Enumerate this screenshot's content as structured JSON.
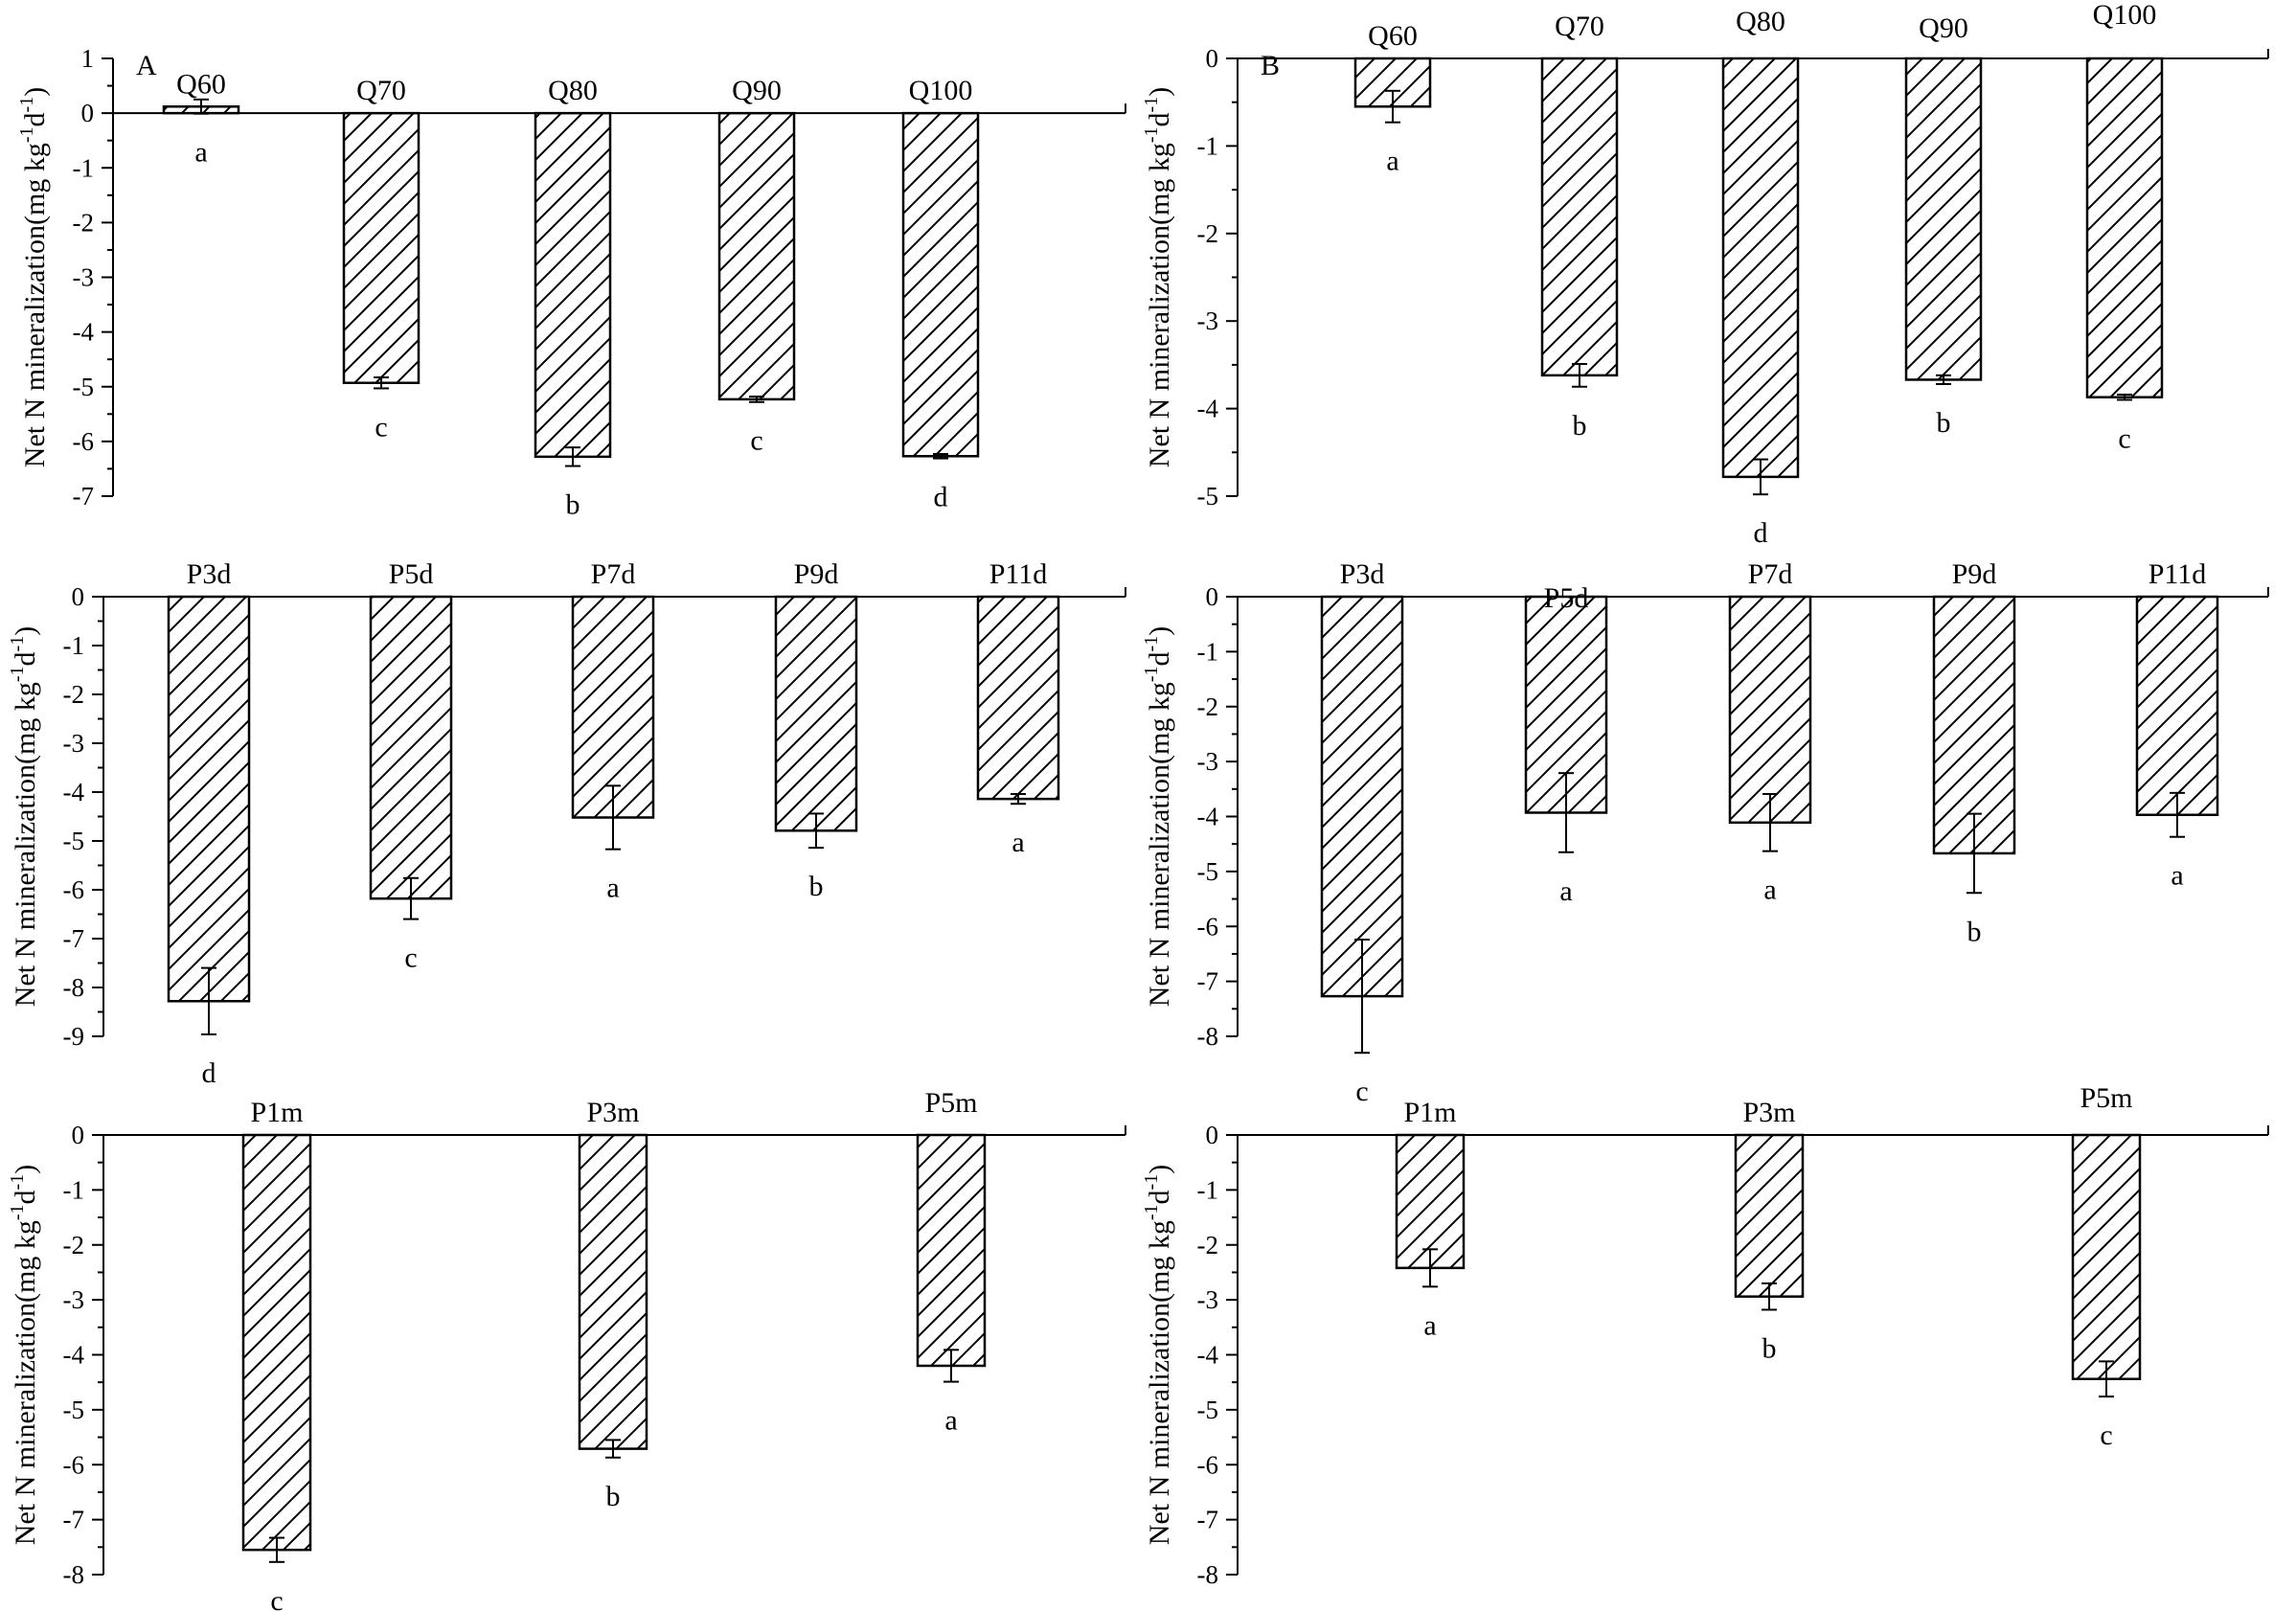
{
  "chart_data": [
    {
      "type": "bar",
      "panel_label": "A",
      "categories": [
        "Q60",
        "Q70",
        "Q80",
        "Q90",
        "Q100"
      ],
      "values": [
        0.12,
        -4.93,
        -6.28,
        -5.23,
        -6.27
      ],
      "errors": [
        0.13,
        0.1,
        0.17,
        0.05,
        0.04
      ],
      "letters": [
        "a",
        "c",
        "b",
        "c",
        "d"
      ],
      "ylabel": "Net N mineralization(mg kg-1d-1)",
      "ylim": [
        -7,
        1
      ],
      "yticks": [
        1,
        0,
        -1,
        -2,
        -3,
        -4,
        -5,
        -6,
        -7
      ],
      "grid": false
    },
    {
      "type": "bar",
      "panel_label": "B",
      "categories": [
        "Q60",
        "Q70",
        "Q80",
        "Q90",
        "Q100"
      ],
      "values": [
        -0.55,
        -3.62,
        -4.78,
        -3.67,
        -3.87
      ],
      "errors": [
        0.18,
        0.13,
        0.2,
        0.05,
        0.03
      ],
      "letters": [
        "a",
        "b",
        "d",
        "b",
        "c"
      ],
      "ylabel": "Net N mineralization(mg kg-1d-1)",
      "ylim": [
        -5,
        0
      ],
      "yticks": [
        0,
        -1,
        -2,
        -3,
        -4,
        -5
      ],
      "grid": false
    },
    {
      "type": "bar",
      "categories": [
        "P3d",
        "P5d",
        "P7d",
        "P9d",
        "P11d"
      ],
      "values": [
        -8.28,
        -6.18,
        -4.52,
        -4.79,
        -4.14
      ],
      "errors": [
        0.68,
        0.42,
        0.65,
        0.35,
        0.1
      ],
      "letters": [
        "d",
        "c",
        "a",
        "b",
        "a"
      ],
      "ylabel": "Net N mineralization(mg kg-1d-1)",
      "ylim": [
        -9,
        0
      ],
      "yticks": [
        0,
        -1,
        -2,
        -3,
        -4,
        -5,
        -6,
        -7,
        -8,
        -9
      ],
      "grid": false
    },
    {
      "type": "bar",
      "categories": [
        "P3d",
        "P5d",
        "P7d",
        "P9d",
        "P11d"
      ],
      "values": [
        -7.27,
        -3.93,
        -4.11,
        -4.67,
        -3.97
      ],
      "errors": [
        1.03,
        0.72,
        0.52,
        0.72,
        0.4
      ],
      "letters": [
        "c",
        "a",
        "a",
        "b",
        "a"
      ],
      "ylabel": "Net N mineralization(mg kg-1d-1)",
      "ylim": [
        -8,
        0
      ],
      "yticks": [
        0,
        -1,
        -2,
        -3,
        -4,
        -5,
        -6,
        -7,
        -8
      ],
      "grid": false
    },
    {
      "type": "bar",
      "categories": [
        "P1m",
        "P3m",
        "P5m"
      ],
      "values": [
        -7.55,
        -5.71,
        -4.2
      ],
      "errors": [
        0.22,
        0.16,
        0.29
      ],
      "letters": [
        "c",
        "b",
        "a"
      ],
      "ylabel": "Net N mineralization(mg kg-1d-1)",
      "ylim": [
        -8,
        0
      ],
      "yticks": [
        0,
        -1,
        -2,
        -3,
        -4,
        -5,
        -6,
        -7,
        -8
      ],
      "grid": false
    },
    {
      "type": "bar",
      "categories": [
        "P1m",
        "P3m",
        "P5m"
      ],
      "values": [
        -2.42,
        -2.94,
        -4.44
      ],
      "errors": [
        0.34,
        0.24,
        0.32
      ],
      "letters": [
        "a",
        "b",
        "c"
      ],
      "ylabel": "Net N mineralization(mg kg-1d-1)",
      "ylim": [
        -8,
        0
      ],
      "yticks": [
        0,
        -1,
        -2,
        -3,
        -4,
        -5,
        -6,
        -7,
        -8
      ],
      "grid": false
    }
  ]
}
